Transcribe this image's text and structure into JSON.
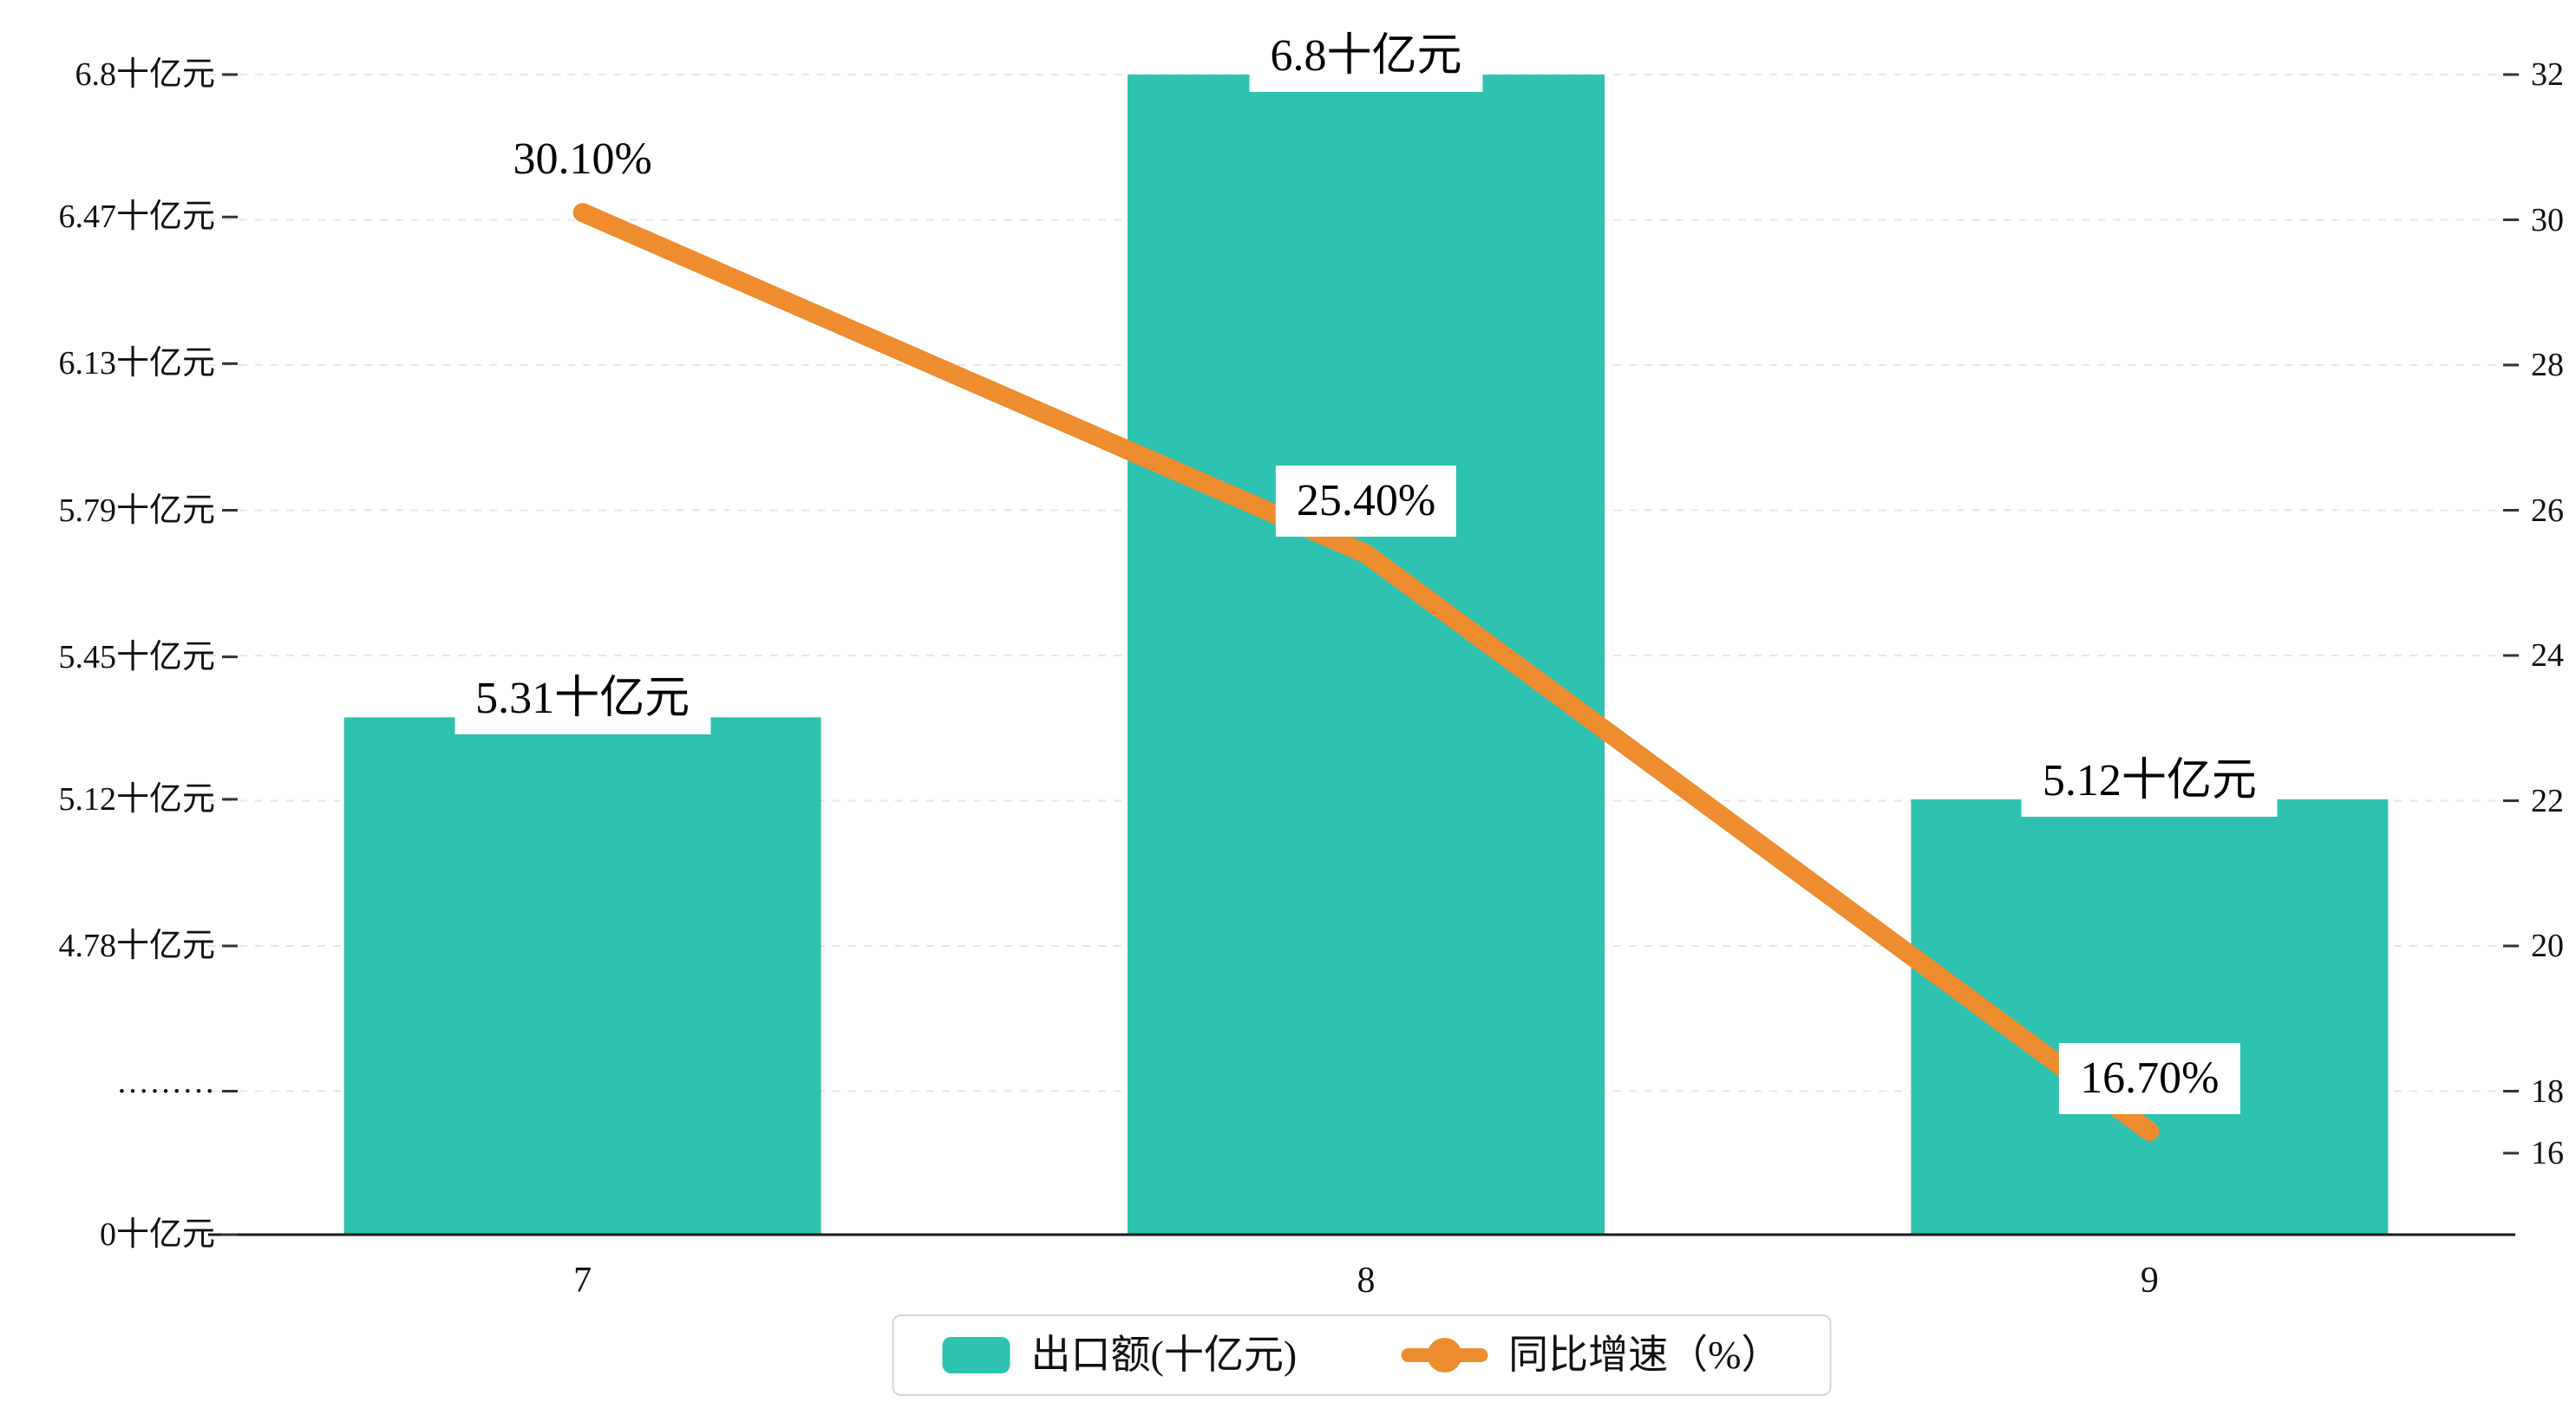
{
  "chart_data": {
    "type": "bar",
    "combo": "bar+line",
    "categories": [
      "7",
      "8",
      "9"
    ],
    "series": [
      {
        "name": "出口额(十亿元)",
        "type": "bar",
        "values": [
          5.31,
          6.8,
          5.12
        ],
        "data_labels": [
          "5.31十亿元",
          "6.8十亿元",
          "5.12十亿元"
        ],
        "color": "#2EC2B0"
      },
      {
        "name": "同比增速（%）",
        "type": "line",
        "values": [
          30.1,
          25.4,
          16.7
        ],
        "data_labels": [
          "30.10%",
          "25.40%",
          "16.70%"
        ],
        "color": "#EE8C30"
      }
    ],
    "left_axis": {
      "tick_values": [
        6.8,
        6.47,
        6.13,
        5.79,
        5.45,
        5.12,
        4.78
      ],
      "tick_labels": [
        "6.8十亿元",
        "6.47十亿元",
        "6.13十亿元",
        "5.79十亿元",
        "5.45十亿元",
        "5.12十亿元",
        "4.78十亿元"
      ],
      "break_label": "·········",
      "zero_label": "0十亿元",
      "min": 0,
      "max": 6.8,
      "axis_break": true
    },
    "right_axis": {
      "tick_values": [
        32,
        30,
        28,
        26,
        24,
        22,
        20,
        18,
        16
      ],
      "tick_labels": [
        "32",
        "30",
        "28",
        "26",
        "24",
        "22",
        "20",
        "18",
        "16"
      ],
      "min": 16,
      "max": 32
    },
    "title": "",
    "xlabel": "",
    "ylabel_left": "十亿元",
    "ylabel_right": "%",
    "grid": "horizontal dashed",
    "legend_position": "bottom-center"
  }
}
